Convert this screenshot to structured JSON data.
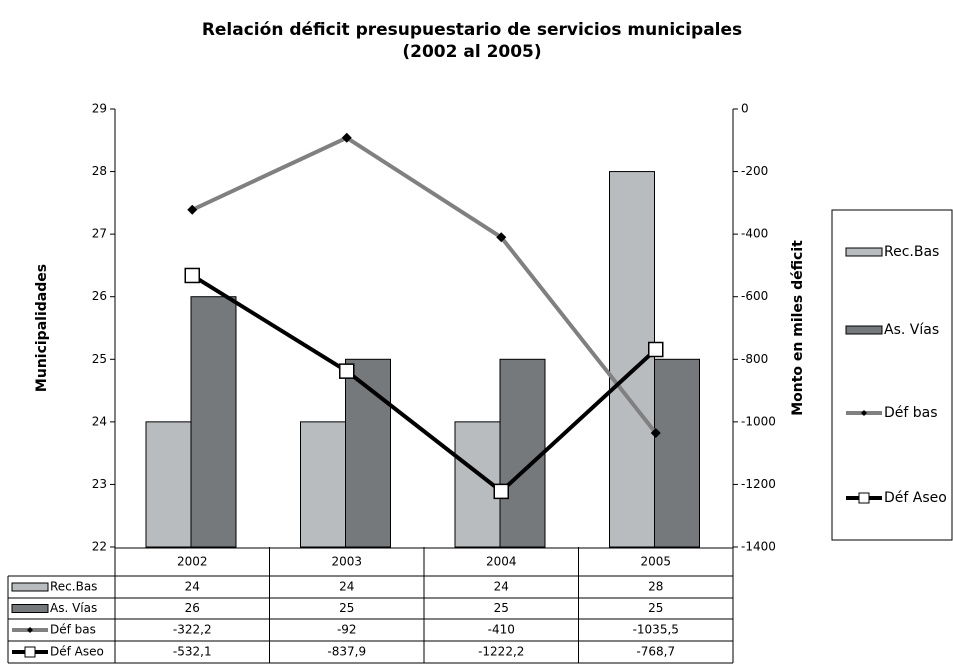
{
  "chart_data": {
    "type": "bar",
    "title": "Relación déficit presupuestario de servicios municipales",
    "subtitle": "(2002 al 2005)",
    "ylabel": "Municipalidades",
    "y2label": "Monto en miles déficit",
    "categories": [
      "2002",
      "2003",
      "2004",
      "2005"
    ],
    "series": [
      {
        "name": "Rec.Bas",
        "type": "bar",
        "color": "#b9bcbf",
        "values": [
          24,
          24,
          24,
          28
        ]
      },
      {
        "name": "As. Vías",
        "type": "bar",
        "color": "#76797c",
        "values": [
          26,
          25,
          25,
          25
        ]
      },
      {
        "name": "Déf bas",
        "type": "line",
        "marker": "diamond",
        "color": "#808080",
        "axis": "y2",
        "values": [
          -322.2,
          -92,
          -410,
          -1035.5
        ],
        "value_labels": [
          "-322,2",
          "-92",
          "-410",
          "-1035,5"
        ]
      },
      {
        "name": "Déf Aseo",
        "type": "line",
        "marker": "square",
        "color": "#000000",
        "axis": "y2",
        "values": [
          -532.1,
          -837.9,
          -1222.2,
          -768.7
        ],
        "value_labels": [
          "-532,1",
          "-837,9",
          "-1222,2",
          "-768,7"
        ]
      }
    ],
    "ylim": [
      22,
      29
    ],
    "yticks": [
      22,
      23,
      24,
      25,
      26,
      27,
      28,
      29
    ],
    "y2lim": [
      -1400,
      0
    ],
    "y2ticks": [
      -1400,
      -1200,
      -1000,
      -800,
      -600,
      -400,
      -200,
      0
    ],
    "legend": "right",
    "data_table": true
  }
}
